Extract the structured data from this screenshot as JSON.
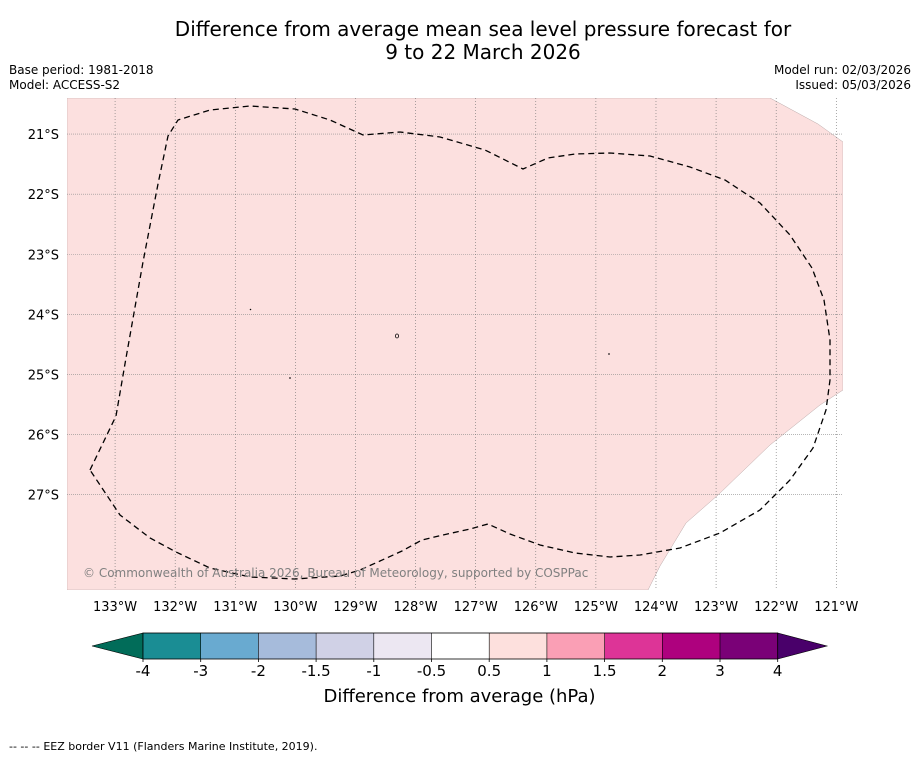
{
  "title": {
    "line1": "Difference from average mean sea level pressure forecast for",
    "line2": "9 to 22 March 2026"
  },
  "info": {
    "base_period": "Base period: 1981-2018",
    "model": "Model: ACCESS-S2",
    "model_run": "Model run: 02/03/2026",
    "issued": "Issued: 05/03/2026"
  },
  "map": {
    "lat_labels": [
      "21°S",
      "22°S",
      "23°S",
      "24°S",
      "25°S",
      "26°S",
      "27°S"
    ],
    "lon_labels": [
      "133°W",
      "132°W",
      "131°W",
      "130°W",
      "129°W",
      "128°W",
      "127°W",
      "126°W",
      "125°W",
      "124°W",
      "123°W",
      "122°W",
      "121°W"
    ],
    "extent": {
      "lon_min": -133.8,
      "lon_max": -120.9,
      "lat_max": -20.4,
      "lat_min": -28.6
    },
    "copyright": "© Commonwealth of Australia 2026, Bureau of Meteorology, supported by COSPPac",
    "fill_color": "#fce0df",
    "fill_category": "0.5 to 1"
  },
  "colorbar": {
    "title": "Difference from average (hPa)",
    "tick_labels": [
      "-4",
      "-3",
      "-2",
      "-1.5",
      "-1",
      "-0.5",
      "0.5",
      "1",
      "1.5",
      "2",
      "3",
      "4"
    ],
    "colors": [
      "#1a8d94",
      "#69aad0",
      "#a6bbdb",
      "#d0d1e6",
      "#ece7f2",
      "#ffffff",
      "#fde0dd",
      "#fa9fb5",
      "#dd3497",
      "#ae017e",
      "#7a0177"
    ],
    "under_color": "#016c59",
    "over_color": "#49006a"
  },
  "footer": {
    "legend_symbol": "--  --  --",
    "legend_text": "EEZ border V11 (Flanders Marine Institute, 2019)."
  }
}
